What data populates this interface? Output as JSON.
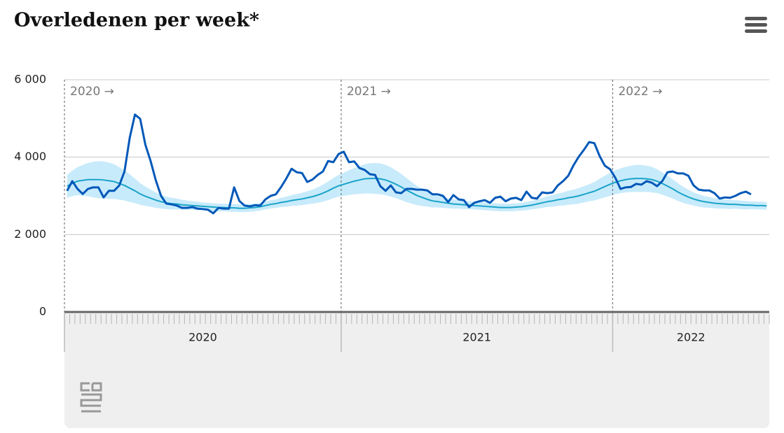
{
  "chart_data": {
    "type": "line",
    "title": "Overledenen per week*",
    "categories": [
      null,
      null,
      null,
      null,
      null,
      null,
      null,
      null,
      null,
      null,
      null,
      null,
      null,
      null,
      null,
      null,
      null,
      null,
      null,
      null,
      null,
      null,
      null,
      null,
      null,
      null,
      null,
      null,
      null,
      null,
      null,
      null,
      null,
      null,
      null,
      null,
      null,
      null,
      null,
      null,
      null,
      null,
      null,
      null,
      null,
      null,
      null,
      null,
      null,
      null,
      null,
      null,
      null,
      null,
      null,
      null,
      null,
      null,
      null,
      null,
      null,
      null,
      null,
      null,
      null,
      null,
      null,
      null,
      null,
      null,
      null,
      null,
      null,
      null,
      null,
      null,
      null,
      null,
      null,
      null,
      null,
      null,
      null,
      null,
      null,
      null,
      null,
      null,
      null,
      null,
      null,
      null,
      null,
      null,
      null,
      null,
      null,
      null,
      null,
      null,
      null,
      null,
      null,
      null,
      null,
      null,
      null,
      null,
      null,
      null,
      null,
      null,
      null,
      null,
      null,
      null,
      null,
      null,
      null,
      null,
      null,
      null,
      null,
      null,
      null,
      null,
      null,
      null,
      null,
      null,
      null,
      null,
      null,
      null,
      null
    ],
    "x_groups": [
      {
        "label": "2020",
        "marker": "2020 →",
        "weeks": 53
      },
      {
        "label": "2021",
        "marker": "2021 →",
        "weeks": 52
      },
      {
        "label": "2022",
        "marker": "2022 →",
        "weeks": 30
      }
    ],
    "ylim": [
      0,
      6000
    ],
    "yticks": [
      0,
      {
        "value": 2000,
        "label": "2 000"
      },
      {
        "value": 4000,
        "label": "4 000"
      },
      {
        "value": 6000,
        "label": "6 000"
      }
    ],
    "grid": true,
    "band": {
      "color": "#c8ebfb",
      "upper": [
        3550,
        3650,
        3740,
        3800,
        3850,
        3880,
        3900,
        3890,
        3860,
        3820,
        3740,
        3660,
        3560,
        3450,
        3330,
        3240,
        3160,
        3090,
        3030,
        2980,
        2950,
        2930,
        2900,
        2880,
        2860,
        2850,
        2830,
        2820,
        2810,
        2800,
        2800,
        2790,
        2790,
        2780,
        2780,
        2790,
        2800,
        2820,
        2850,
        2890,
        2910,
        2950,
        2980,
        3020,
        3050,
        3080,
        3120,
        3160,
        3220,
        3290,
        3370,
        3460,
        3540,
        3600,
        3660,
        3720,
        3770,
        3820,
        3840,
        3850,
        3840,
        3800,
        3740,
        3660,
        3570,
        3460,
        3360,
        3260,
        3180,
        3100,
        3040,
        3000,
        2970,
        2940,
        2910,
        2890,
        2880,
        2860,
        2850,
        2840,
        2830,
        2820,
        2810,
        2800,
        2800,
        2800,
        2810,
        2820,
        2850,
        2870,
        2910,
        2950,
        2990,
        3020,
        3060,
        3090,
        3130,
        3160,
        3200,
        3250,
        3300,
        3360,
        3440,
        3520,
        3600,
        3660,
        3710,
        3750,
        3780,
        3800,
        3800,
        3780,
        3750,
        3690,
        3610,
        3520,
        3430,
        3330,
        3240,
        3160,
        3090,
        3040,
        3000,
        2970,
        2940,
        2930,
        2910,
        2900,
        2890,
        2880,
        2870,
        2860,
        2850,
        2850,
        2840
      ],
      "lower": [
        2950,
        2990,
        3020,
        3000,
        2990,
        2960,
        2940,
        2930,
        2920,
        2920,
        2900,
        2880,
        2840,
        2810,
        2770,
        2740,
        2720,
        2690,
        2670,
        2660,
        2650,
        2650,
        2640,
        2640,
        2640,
        2630,
        2630,
        2620,
        2610,
        2600,
        2600,
        2590,
        2590,
        2580,
        2580,
        2590,
        2600,
        2620,
        2650,
        2670,
        2690,
        2710,
        2720,
        2740,
        2750,
        2760,
        2780,
        2800,
        2820,
        2850,
        2890,
        2940,
        2980,
        3000,
        3020,
        3040,
        3050,
        3060,
        3060,
        3050,
        3040,
        3020,
        2980,
        2940,
        2890,
        2840,
        2800,
        2760,
        2740,
        2720,
        2700,
        2700,
        2690,
        2680,
        2670,
        2670,
        2660,
        2660,
        2650,
        2640,
        2630,
        2620,
        2610,
        2600,
        2600,
        2600,
        2610,
        2620,
        2630,
        2650,
        2670,
        2690,
        2710,
        2720,
        2740,
        2750,
        2770,
        2780,
        2800,
        2830,
        2860,
        2880,
        2920,
        2960,
        3000,
        3040,
        3070,
        3090,
        3100,
        3100,
        3100,
        3100,
        3090,
        3070,
        3030,
        2980,
        2930,
        2870,
        2820,
        2780,
        2750,
        2720,
        2700,
        2690,
        2680,
        2670,
        2670,
        2660,
        2670,
        2660,
        2650,
        2660,
        2650,
        2650,
        2640
      ]
    },
    "series": [
      {
        "color": "#1aa3c9",
        "width": 2,
        "values": [
          3250,
          3320,
          3380,
          3400,
          3420,
          3420,
          3420,
          3410,
          3390,
          3370,
          3320,
          3270,
          3200,
          3130,
          3050,
          2990,
          2940,
          2890,
          2850,
          2820,
          2800,
          2790,
          2770,
          2760,
          2750,
          2740,
          2730,
          2720,
          2710,
          2700,
          2700,
          2690,
          2690,
          2680,
          2680,
          2690,
          2700,
          2720,
          2750,
          2780,
          2800,
          2830,
          2850,
          2880,
          2900,
          2920,
          2950,
          2980,
          3020,
          3070,
          3130,
          3200,
          3260,
          3300,
          3340,
          3380,
          3410,
          3440,
          3450,
          3450,
          3440,
          3410,
          3360,
          3300,
          3230,
          3150,
          3080,
          3010,
          2960,
          2910,
          2870,
          2850,
          2830,
          2810,
          2790,
          2780,
          2770,
          2760,
          2750,
          2740,
          2730,
          2720,
          2710,
          2700,
          2700,
          2700,
          2710,
          2720,
          2740,
          2760,
          2790,
          2820,
          2850,
          2870,
          2900,
          2920,
          2950,
          2970,
          3000,
          3040,
          3080,
          3120,
          3180,
          3240,
          3300,
          3350,
          3390,
          3420,
          3440,
          3450,
          3450,
          3440,
          3420,
          3380,
          3320,
          3250,
          3180,
          3100,
          3030,
          2970,
          2920,
          2880,
          2850,
          2830,
          2810,
          2800,
          2790,
          2780,
          2780,
          2770,
          2760,
          2760,
          2750,
          2750,
          2740
        ]
      },
      {
        "color": "#0058b8",
        "width": 3,
        "values": [
          3130,
          3380,
          3180,
          3050,
          3180,
          3220,
          3220,
          2960,
          3130,
          3130,
          3270,
          3630,
          4500,
          5100,
          4990,
          4320,
          3900,
          3400,
          3000,
          2800,
          2780,
          2750,
          2690,
          2690,
          2710,
          2670,
          2660,
          2640,
          2550,
          2690,
          2670,
          2670,
          3220,
          2870,
          2750,
          2730,
          2760,
          2750,
          2910,
          3000,
          3040,
          3230,
          3450,
          3700,
          3610,
          3590,
          3360,
          3420,
          3540,
          3630,
          3900,
          3870,
          4080,
          4140,
          3870,
          3890,
          3720,
          3670,
          3560,
          3540,
          3250,
          3130,
          3270,
          3090,
          3070,
          3180,
          3180,
          3160,
          3160,
          3140,
          3040,
          3040,
          3000,
          2840,
          3020,
          2910,
          2890,
          2710,
          2820,
          2860,
          2890,
          2820,
          2950,
          2980,
          2860,
          2930,
          2950,
          2890,
          3110,
          2950,
          2930,
          3090,
          3070,
          3090,
          3270,
          3380,
          3520,
          3790,
          4010,
          4190,
          4390,
          4360,
          4030,
          3780,
          3690,
          3470,
          3180,
          3220,
          3230,
          3310,
          3290,
          3380,
          3340,
          3250,
          3380,
          3610,
          3630,
          3580,
          3580,
          3520,
          3270,
          3160,
          3140,
          3140,
          3070,
          2930,
          2960,
          2950,
          3000,
          3070,
          3110,
          3040,
          null,
          null,
          null
        ]
      }
    ]
  }
}
